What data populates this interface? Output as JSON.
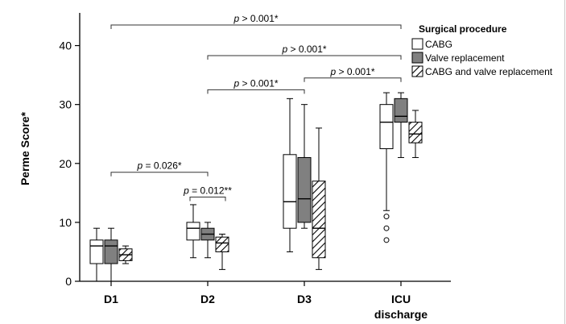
{
  "chart_data": {
    "type": "boxplot",
    "ylabel": "Perme Score*",
    "ylim": [
      0,
      45
    ],
    "yticks": [
      0,
      10,
      20,
      30,
      40
    ],
    "categories": [
      {
        "lines": [
          "D1"
        ]
      },
      {
        "lines": [
          "D2"
        ]
      },
      {
        "lines": [
          "D3"
        ]
      },
      {
        "lines": [
          "ICU",
          "discharge"
        ]
      }
    ],
    "legend": {
      "title": "Surgical procedure",
      "position": "top-right"
    },
    "series": [
      {
        "name": "CABG",
        "fill": "#ffffff",
        "pattern": "none",
        "boxes": [
          {
            "min": 0,
            "q1": 3,
            "median": 6,
            "q3": 7,
            "max": 9,
            "outliers": []
          },
          {
            "min": 4,
            "q1": 7,
            "median": 9,
            "q3": 10,
            "max": 13,
            "outliers": []
          },
          {
            "min": 5,
            "q1": 9,
            "median": 13.5,
            "q3": 21.5,
            "max": 31,
            "outliers": []
          },
          {
            "min": 12,
            "q1": 22.5,
            "median": 27,
            "q3": 30,
            "max": 32,
            "outliers": [
              11,
              9,
              7
            ]
          }
        ]
      },
      {
        "name": "Valve replacement",
        "fill": "#808080",
        "pattern": "none",
        "boxes": [
          {
            "min": 0,
            "q1": 3,
            "median": 6,
            "q3": 7,
            "max": 9,
            "outliers": []
          },
          {
            "min": 4,
            "q1": 7,
            "median": 8,
            "q3": 9,
            "max": 10,
            "outliers": []
          },
          {
            "min": 9,
            "q1": 10,
            "median": 14,
            "q3": 21,
            "max": 30,
            "outliers": []
          },
          {
            "min": 21,
            "q1": 27,
            "median": 28,
            "q3": 31,
            "max": 32,
            "outliers": []
          }
        ]
      },
      {
        "name": "CABG and valve replacement",
        "fill": "#ffffff",
        "pattern": "diagonal-hatch",
        "boxes": [
          {
            "min": 3,
            "q1": 3.5,
            "median": 4.5,
            "q3": 5.5,
            "max": 6,
            "outliers": []
          },
          {
            "min": 2,
            "q1": 5,
            "median": 6.5,
            "q3": 7.5,
            "max": 8,
            "outliers": []
          },
          {
            "min": 2,
            "q1": 4,
            "median": 9,
            "q3": 17,
            "max": 26,
            "outliers": []
          },
          {
            "min": 21,
            "q1": 23.5,
            "median": 25,
            "q3": 27,
            "max": 29,
            "outliers": []
          }
        ]
      }
    ],
    "comparisons": [
      {
        "from": 0,
        "to": 3,
        "y": 43.5,
        "label": "p > 0.001*"
      },
      {
        "from": 1,
        "to": 3,
        "y": 38.3,
        "label": "p > 0.001*"
      },
      {
        "from": 2,
        "to": 3,
        "y": 34.5,
        "label": "p > 0.001*"
      },
      {
        "from": 1,
        "to": 2,
        "y": 32.5,
        "label": "p > 0.001*"
      },
      {
        "from": 0,
        "to": 1,
        "y": 18.5,
        "label": "p = 0.026*"
      },
      {
        "from": 1,
        "to": 1,
        "y": 14.3,
        "label": "p = 0.012**",
        "narrow": true
      }
    ]
  }
}
